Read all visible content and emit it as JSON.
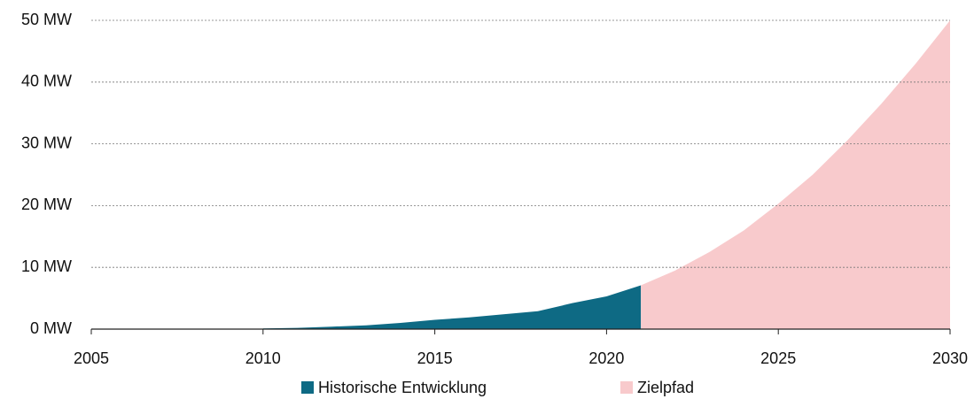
{
  "chart_data": {
    "type": "area",
    "series": [
      {
        "name": "Historische Entwicklung",
        "color": "#0e6a84",
        "x": [
          2010,
          2011,
          2012,
          2013,
          2014,
          2015,
          2016,
          2017,
          2018,
          2019,
          2020,
          2021
        ],
        "values": [
          0.1,
          0.2,
          0.4,
          0.6,
          1.0,
          1.5,
          1.9,
          2.4,
          2.9,
          4.2,
          5.3,
          7.1
        ]
      },
      {
        "name": "Zielpfad",
        "color": "#f8cacc",
        "x": [
          2021,
          2022,
          2023,
          2024,
          2025,
          2026,
          2027,
          2028,
          2029,
          2030
        ],
        "values": [
          7.1,
          9.5,
          12.5,
          16,
          20.3,
          25,
          30.5,
          36.5,
          43,
          50
        ]
      }
    ],
    "xlim": [
      2005,
      2030
    ],
    "xticks": [
      2005,
      2010,
      2015,
      2020,
      2025,
      2030
    ],
    "ylim": [
      0,
      50
    ],
    "yticks": [
      {
        "value": 0,
        "label": "0 MW"
      },
      {
        "value": 10,
        "label": "10 MW"
      },
      {
        "value": 20,
        "label": "20 MW"
      },
      {
        "value": 30,
        "label": "30 MW"
      },
      {
        "value": 40,
        "label": "40 MW"
      },
      {
        "value": 50,
        "label": "50 MW"
      }
    ],
    "grid": true,
    "legend": "bottom"
  }
}
